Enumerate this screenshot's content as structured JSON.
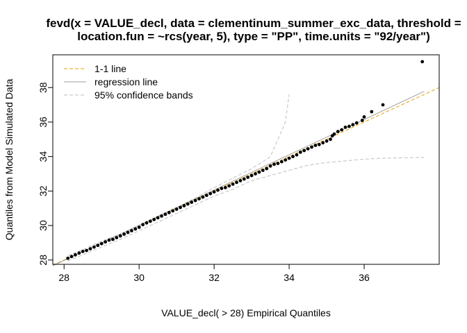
{
  "chart_data": {
    "type": "scatter",
    "title_lines": [
      "fevd(x = VALUE_decl, data = clementinum_summer_exc_data, threshold =",
      "location.fun = ~rcs(year, 5), type = \"PP\", time.units = \"92/year\")"
    ],
    "xlabel": "VALUE_decl( > 28) Empirical Quantiles",
    "ylabel": "Quantiles from Model Simulated Data",
    "xlim": [
      27.7,
      38.0
    ],
    "ylim": [
      27.75,
      39.9
    ],
    "x_ticks": [
      28,
      30,
      32,
      34,
      36
    ],
    "y_ticks": [
      28,
      30,
      32,
      34,
      36,
      38
    ],
    "grid": false,
    "legend_position": "top-left",
    "legend": [
      {
        "label": "1-1 line",
        "color": "#E69F00",
        "dash": "dashed"
      },
      {
        "label": "regression line",
        "color": "#9E9E9E",
        "dash": "solid"
      },
      {
        "label": "95% confidence bands",
        "color": "#BEBEBE",
        "dash": "dashed"
      }
    ],
    "series": [
      {
        "role": "1-1 line",
        "type": "line",
        "color": "#E69F00",
        "points": [
          [
            27.7,
            27.7
          ],
          [
            38.0,
            38.0
          ]
        ]
      },
      {
        "role": "regression line",
        "type": "line",
        "color": "#9E9E9E",
        "points": [
          [
            27.7,
            27.67
          ],
          [
            37.6,
            37.78
          ]
        ]
      },
      {
        "role": "95% confidence bands (upper)",
        "type": "line",
        "color": "#BEBEBE",
        "points": [
          [
            28.1,
            28.25
          ],
          [
            28.5,
            28.6
          ],
          [
            29.0,
            29.1
          ],
          [
            29.5,
            29.5
          ],
          [
            30.0,
            30.0
          ],
          [
            30.5,
            30.55
          ],
          [
            31.0,
            31.05
          ],
          [
            31.5,
            31.6
          ],
          [
            32.0,
            32.2
          ],
          [
            32.5,
            32.75
          ],
          [
            33.0,
            33.3
          ],
          [
            33.3,
            33.7
          ],
          [
            33.5,
            34.0
          ],
          [
            33.7,
            35.0
          ],
          [
            33.9,
            36.0
          ],
          [
            34.0,
            37.6
          ]
        ]
      },
      {
        "role": "95% confidence bands (lower)",
        "type": "line",
        "color": "#BEBEBE",
        "points": [
          [
            28.1,
            27.95
          ],
          [
            28.5,
            28.3
          ],
          [
            29.0,
            28.75
          ],
          [
            29.5,
            29.2
          ],
          [
            30.0,
            29.7
          ],
          [
            30.5,
            30.2
          ],
          [
            31.0,
            30.7
          ],
          [
            31.5,
            31.2
          ],
          [
            32.0,
            31.7
          ],
          [
            32.5,
            32.1
          ],
          [
            33.0,
            32.6
          ],
          [
            33.5,
            32.9
          ],
          [
            34.0,
            33.2
          ],
          [
            34.5,
            33.5
          ],
          [
            35.0,
            33.65
          ],
          [
            35.5,
            33.75
          ],
          [
            36.0,
            33.85
          ],
          [
            36.5,
            33.9
          ],
          [
            37.6,
            33.95
          ]
        ]
      },
      {
        "role": "data",
        "type": "scatter",
        "color": "#000000",
        "points": [
          [
            28.1,
            28.1
          ],
          [
            28.2,
            28.2
          ],
          [
            28.3,
            28.3
          ],
          [
            28.4,
            28.4
          ],
          [
            28.5,
            28.5
          ],
          [
            28.6,
            28.55
          ],
          [
            28.7,
            28.65
          ],
          [
            28.8,
            28.75
          ],
          [
            28.9,
            28.85
          ],
          [
            29.0,
            28.95
          ],
          [
            29.1,
            29.05
          ],
          [
            29.2,
            29.15
          ],
          [
            29.3,
            29.2
          ],
          [
            29.4,
            29.3
          ],
          [
            29.5,
            29.4
          ],
          [
            29.6,
            29.5
          ],
          [
            29.7,
            29.6
          ],
          [
            29.8,
            29.7
          ],
          [
            29.9,
            29.8
          ],
          [
            30.0,
            29.9
          ],
          [
            30.1,
            30.05
          ],
          [
            30.2,
            30.15
          ],
          [
            30.3,
            30.25
          ],
          [
            30.4,
            30.35
          ],
          [
            30.5,
            30.45
          ],
          [
            30.6,
            30.55
          ],
          [
            30.7,
            30.65
          ],
          [
            30.8,
            30.75
          ],
          [
            30.9,
            30.85
          ],
          [
            31.0,
            30.95
          ],
          [
            31.1,
            31.05
          ],
          [
            31.2,
            31.15
          ],
          [
            31.3,
            31.25
          ],
          [
            31.4,
            31.35
          ],
          [
            31.5,
            31.45
          ],
          [
            31.6,
            31.55
          ],
          [
            31.7,
            31.65
          ],
          [
            31.8,
            31.75
          ],
          [
            31.9,
            31.85
          ],
          [
            32.0,
            31.95
          ],
          [
            32.1,
            32.05
          ],
          [
            32.2,
            32.15
          ],
          [
            32.3,
            32.2
          ],
          [
            32.4,
            32.3
          ],
          [
            32.5,
            32.4
          ],
          [
            32.6,
            32.5
          ],
          [
            32.7,
            32.6
          ],
          [
            32.8,
            32.7
          ],
          [
            32.9,
            32.8
          ],
          [
            33.0,
            32.9
          ],
          [
            33.1,
            33.0
          ],
          [
            33.2,
            33.1
          ],
          [
            33.3,
            33.2
          ],
          [
            33.4,
            33.3
          ],
          [
            33.5,
            33.45
          ],
          [
            33.6,
            33.55
          ],
          [
            33.7,
            33.6
          ],
          [
            33.8,
            33.7
          ],
          [
            33.9,
            33.8
          ],
          [
            34.0,
            33.9
          ],
          [
            34.1,
            34.0
          ],
          [
            34.2,
            34.1
          ],
          [
            34.3,
            34.25
          ],
          [
            34.4,
            34.35
          ],
          [
            34.5,
            34.45
          ],
          [
            34.6,
            34.55
          ],
          [
            34.7,
            34.65
          ],
          [
            34.8,
            34.7
          ],
          [
            34.9,
            34.8
          ],
          [
            35.0,
            34.9
          ],
          [
            35.1,
            35.0
          ],
          [
            35.15,
            35.2
          ],
          [
            35.2,
            35.3
          ],
          [
            35.3,
            35.45
          ],
          [
            35.4,
            35.55
          ],
          [
            35.5,
            35.7
          ],
          [
            35.6,
            35.75
          ],
          [
            35.7,
            35.85
          ],
          [
            35.8,
            35.95
          ],
          [
            35.95,
            36.1
          ],
          [
            36.0,
            36.3
          ],
          [
            36.2,
            36.6
          ],
          [
            36.5,
            37.0
          ],
          [
            37.55,
            39.5
          ]
        ]
      }
    ]
  }
}
